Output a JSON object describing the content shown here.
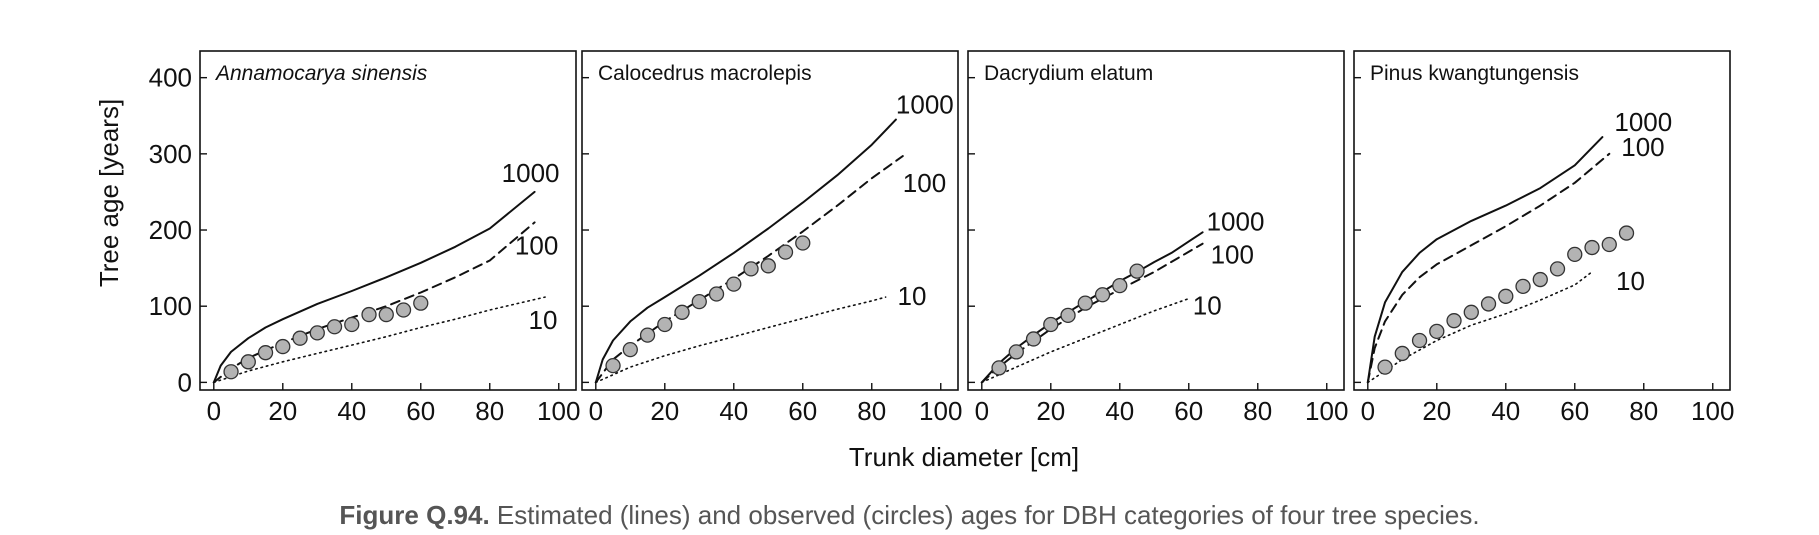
{
  "figure": {
    "xlabel": "Trunk diameter [cm]",
    "ylabel": "Tree age [years]",
    "caption_label": "Figure Q.94.",
    "caption_text": "Estimated (lines) and observed (circles) ages for DBH categories of four tree species."
  },
  "chart_data": [
    {
      "type": "line",
      "title": "Annamocarya sinensis",
      "title_italic": true,
      "xlim": [
        -4,
        105
      ],
      "ylim": [
        -10,
        435
      ],
      "xticks": [
        0,
        20,
        40,
        60,
        80,
        100
      ],
      "yticks": [
        0,
        100,
        200,
        300,
        400
      ],
      "series": [
        {
          "name": "1000",
          "style": "solid",
          "x": [
            0,
            2,
            5,
            10,
            15,
            20,
            30,
            40,
            50,
            60,
            70,
            80,
            93
          ],
          "y": [
            0,
            22,
            40,
            58,
            72,
            83,
            103,
            120,
            138,
            157,
            178,
            202,
            250
          ]
        },
        {
          "name": "100",
          "style": "dashed",
          "x": [
            0,
            5,
            10,
            20,
            30,
            40,
            50,
            60,
            70,
            80,
            93
          ],
          "y": [
            0,
            18,
            32,
            52,
            70,
            85,
            100,
            118,
            138,
            160,
            210
          ]
        },
        {
          "name": "10",
          "style": "dotted",
          "x": [
            0,
            10,
            20,
            30,
            40,
            50,
            60,
            70,
            80,
            96
          ],
          "y": [
            0,
            15,
            27,
            38,
            49,
            60,
            72,
            83,
            95,
            112
          ]
        },
        {
          "name": "observed",
          "style": "points",
          "x": [
            5,
            10,
            15,
            20,
            25,
            30,
            35,
            40,
            45,
            50,
            55,
            60
          ],
          "y": [
            14,
            27,
            39,
            47,
            58,
            65,
            73,
            76,
            89,
            89,
            95,
            104
          ]
        }
      ]
    },
    {
      "type": "line",
      "title": "Calocedrus macrolepis",
      "title_italic": false,
      "xlim": [
        -4,
        105
      ],
      "ylim": [
        -10,
        435
      ],
      "xticks": [
        0,
        20,
        40,
        60,
        80,
        100
      ],
      "yticks": [
        0,
        100,
        200,
        300,
        400
      ],
      "series": [
        {
          "name": "1000",
          "style": "solid",
          "x": [
            0,
            2,
            5,
            10,
            15,
            20,
            30,
            40,
            50,
            60,
            70,
            80,
            87
          ],
          "y": [
            0,
            30,
            55,
            80,
            98,
            112,
            140,
            170,
            202,
            236,
            272,
            312,
            345
          ]
        },
        {
          "name": "100",
          "style": "dashed",
          "x": [
            0,
            5,
            10,
            20,
            30,
            40,
            50,
            60,
            70,
            80,
            89
          ],
          "y": [
            0,
            30,
            48,
            80,
            108,
            136,
            166,
            198,
            232,
            268,
            297
          ]
        },
        {
          "name": "10",
          "style": "dotted",
          "x": [
            0,
            10,
            20,
            30,
            40,
            50,
            60,
            70,
            80,
            84
          ],
          "y": [
            0,
            20,
            35,
            48,
            60,
            72,
            84,
            96,
            107,
            112
          ]
        },
        {
          "name": "observed",
          "style": "points",
          "x": [
            5,
            10,
            15,
            20,
            25,
            30,
            35,
            40,
            45,
            50,
            55,
            60
          ],
          "y": [
            22,
            43,
            62,
            76,
            92,
            106,
            116,
            129,
            149,
            153,
            171,
            183
          ]
        }
      ]
    },
    {
      "type": "line",
      "title": "Dacrydium elatum",
      "title_italic": false,
      "xlim": [
        -4,
        105
      ],
      "ylim": [
        -10,
        435
      ],
      "xticks": [
        0,
        20,
        40,
        60,
        80,
        100
      ],
      "yticks": [
        0,
        100,
        200,
        300,
        400
      ],
      "series": [
        {
          "name": "1000",
          "style": "solid",
          "x": [
            0,
            2,
            5,
            10,
            15,
            20,
            25,
            30,
            35,
            40,
            45,
            50,
            55,
            60,
            64
          ],
          "y": [
            0,
            10,
            25,
            45,
            62,
            78,
            92,
            106,
            119,
            133,
            145,
            158,
            170,
            185,
            197
          ]
        },
        {
          "name": "100",
          "style": "dashed",
          "x": [
            0,
            5,
            10,
            20,
            30,
            40,
            50,
            64
          ],
          "y": [
            0,
            20,
            38,
            70,
            98,
            122,
            145,
            182
          ]
        },
        {
          "name": "10",
          "style": "dotted",
          "x": [
            0,
            10,
            20,
            30,
            40,
            50,
            60
          ],
          "y": [
            0,
            20,
            40,
            58,
            76,
            94,
            110
          ]
        },
        {
          "name": "observed",
          "style": "points",
          "x": [
            5,
            10,
            15,
            20,
            25,
            30,
            35,
            40,
            45
          ],
          "y": [
            19,
            40,
            57,
            76,
            88,
            104,
            115,
            127,
            146
          ]
        }
      ]
    },
    {
      "type": "line",
      "title": "Pinus kwangtungensis",
      "title_italic": false,
      "xlim": [
        -4,
        105
      ],
      "ylim": [
        -10,
        435
      ],
      "xticks": [
        0,
        20,
        40,
        60,
        80,
        100
      ],
      "yticks": [
        0,
        100,
        200,
        300,
        400
      ],
      "series": [
        {
          "name": "1000",
          "style": "solid",
          "x": [
            0,
            2,
            5,
            10,
            15,
            20,
            30,
            40,
            50,
            60,
            68
          ],
          "y": [
            0,
            60,
            105,
            145,
            170,
            188,
            212,
            232,
            255,
            285,
            322
          ]
        },
        {
          "name": "100",
          "style": "dashed",
          "x": [
            0,
            2,
            5,
            10,
            15,
            20,
            30,
            40,
            50,
            60,
            70
          ],
          "y": [
            0,
            45,
            80,
            115,
            138,
            155,
            180,
            205,
            232,
            262,
            300
          ]
        },
        {
          "name": "10",
          "style": "dotted",
          "x": [
            0,
            10,
            20,
            30,
            40,
            50,
            60,
            65
          ],
          "y": [
            0,
            30,
            55,
            75,
            90,
            108,
            128,
            145
          ]
        },
        {
          "name": "observed",
          "style": "points",
          "x": [
            5,
            10,
            15,
            20,
            25,
            30,
            35,
            40,
            45,
            50,
            55,
            60,
            65,
            70,
            75
          ],
          "y": [
            20,
            38,
            55,
            67,
            81,
            92,
            103,
            113,
            126,
            135,
            149,
            168,
            177,
            181,
            196
          ]
        }
      ]
    }
  ]
}
